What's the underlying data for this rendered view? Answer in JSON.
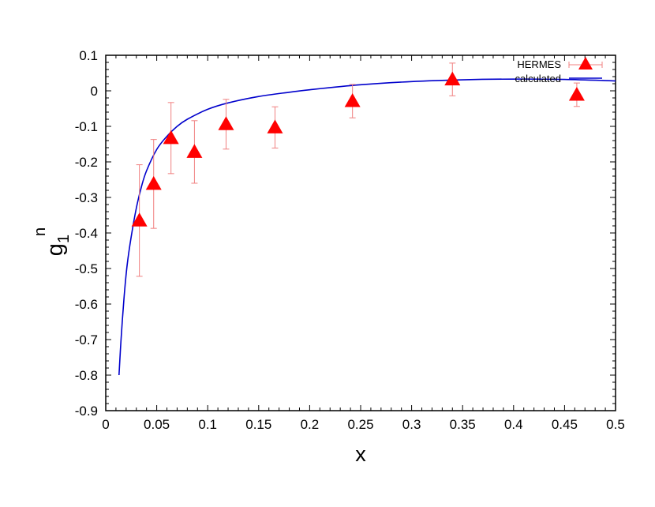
{
  "chart_data": {
    "type": "scatter",
    "title": "",
    "xlabel": "x",
    "ylabel_main": "g",
    "ylabel_sub": "1",
    "ylabel_sup": "n",
    "xlim": [
      0,
      0.5
    ],
    "ylim": [
      -0.9,
      0.1
    ],
    "xticks": [
      0,
      0.05,
      0.1,
      0.15,
      0.2,
      0.25,
      0.3,
      0.35,
      0.4,
      0.45,
      0.5
    ],
    "xtick_labels": [
      "0",
      "0.05",
      "0.1",
      "0.15",
      "0.2",
      "0.25",
      "0.3",
      "0.35",
      "0.4",
      "0.45",
      "0.5"
    ],
    "yticks": [
      -0.9,
      -0.8,
      -0.7,
      -0.6,
      -0.5,
      -0.4,
      -0.3,
      -0.2,
      -0.1,
      0,
      0.1
    ],
    "ytick_labels": [
      "-0.9",
      "-0.8",
      "-0.7",
      "-0.6",
      "-0.5",
      "-0.4",
      "-0.3",
      "-0.2",
      "-0.1",
      "0",
      "0.1"
    ],
    "grid": false,
    "legend_position": "top-right",
    "series": [
      {
        "name": "HERMES",
        "kind": "points-errorbars",
        "color": "#ff0000",
        "errorbar_color": "#f08080",
        "marker": "triangle",
        "points": [
          {
            "x": 0.033,
            "y": -0.365,
            "err": 0.157
          },
          {
            "x": 0.047,
            "y": -0.262,
            "err": 0.125
          },
          {
            "x": 0.064,
            "y": -0.133,
            "err": 0.1
          },
          {
            "x": 0.087,
            "y": -0.172,
            "err": 0.088
          },
          {
            "x": 0.118,
            "y": -0.094,
            "err": 0.07
          },
          {
            "x": 0.166,
            "y": -0.103,
            "err": 0.058
          },
          {
            "x": 0.242,
            "y": -0.029,
            "err": 0.047
          },
          {
            "x": 0.34,
            "y": 0.032,
            "err": 0.046
          },
          {
            "x": 0.462,
            "y": -0.011,
            "err": 0.033
          }
        ]
      },
      {
        "name": "calculated",
        "kind": "line",
        "color": "#0000cc",
        "x": [
          0.013,
          0.015,
          0.018,
          0.021,
          0.025,
          0.03,
          0.035,
          0.04,
          0.05,
          0.06,
          0.07,
          0.08,
          0.1,
          0.12,
          0.15,
          0.18,
          0.2,
          0.25,
          0.3,
          0.35,
          0.4,
          0.45,
          0.5
        ],
        "y": [
          -0.8,
          -0.7,
          -0.58,
          -0.49,
          -0.41,
          -0.33,
          -0.27,
          -0.225,
          -0.165,
          -0.128,
          -0.1,
          -0.08,
          -0.052,
          -0.034,
          -0.016,
          -0.004,
          0.003,
          0.017,
          0.026,
          0.031,
          0.033,
          0.032,
          0.028
        ]
      }
    ]
  }
}
